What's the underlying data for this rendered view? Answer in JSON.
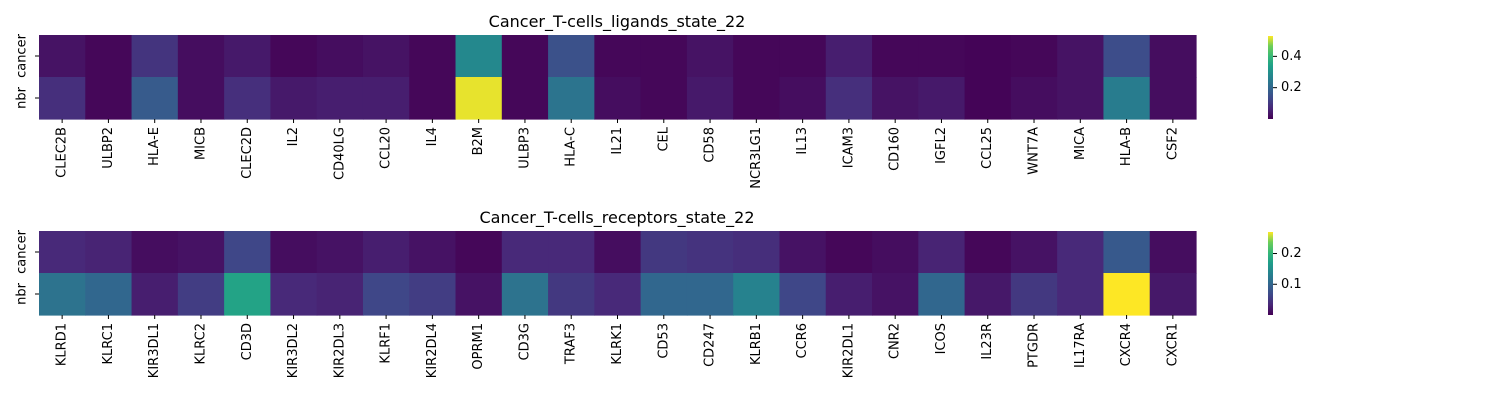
{
  "chart_data": [
    {
      "type": "heatmap",
      "title": "Cancer_T-cells_ligands_state_22",
      "xlabel": "",
      "ylabel": "",
      "rows": [
        "cancer",
        "nbr"
      ],
      "columns": [
        "CLEC2B",
        "ULBP2",
        "HLA-E",
        "MICB",
        "CLEC2D",
        "IL2",
        "CD40LG",
        "CCL20",
        "IL4",
        "B2M",
        "ULBP3",
        "HLA-C",
        "IL21",
        "CEL",
        "CD58",
        "NCR3LG1",
        "IL13",
        "ICAM3",
        "CD160",
        "IGFL2",
        "CCL25",
        "WNT7A",
        "MICA",
        "HLA-B",
        "CSF2"
      ],
      "values": [
        [
          0.03,
          0.01,
          0.09,
          0.02,
          0.04,
          0.01,
          0.02,
          0.03,
          0.01,
          0.28,
          0.01,
          0.15,
          0.01,
          0.01,
          0.03,
          0.01,
          0.01,
          0.05,
          0.01,
          0.01,
          0.005,
          0.01,
          0.03,
          0.14,
          0.02
        ],
        [
          0.08,
          0.01,
          0.17,
          0.02,
          0.08,
          0.04,
          0.05,
          0.05,
          0.01,
          0.52,
          0.01,
          0.23,
          0.02,
          0.01,
          0.04,
          0.01,
          0.02,
          0.08,
          0.03,
          0.04,
          0.005,
          0.02,
          0.03,
          0.25,
          0.02
        ]
      ],
      "colorbar": {
        "colormap": "viridis",
        "vmin": 0.0,
        "vmax": 0.53,
        "ticks": [
          0.2,
          0.4
        ]
      },
      "grid": false
    },
    {
      "type": "heatmap",
      "title": "Cancer_T-cells_receptors_state_22",
      "xlabel": "",
      "ylabel": "",
      "rows": [
        "cancer",
        "nbr"
      ],
      "columns": [
        "KLRD1",
        "KLRC1",
        "KIR3DL1",
        "KLRC2",
        "CD3D",
        "KIR3DL2",
        "KIR2DL3",
        "KLRF1",
        "KIR2DL4",
        "OPRM1",
        "CD3G",
        "TRAF3",
        "KLRK1",
        "CD53",
        "CD247",
        "KLRB1",
        "CCR6",
        "KIR2DL1",
        "CNR2",
        "ICOS",
        "IL23R",
        "PTGDR",
        "IL17RA",
        "CXCR4",
        "CXCR1"
      ],
      "values": [
        [
          0.035,
          0.03,
          0.01,
          0.015,
          0.065,
          0.01,
          0.015,
          0.025,
          0.015,
          0.005,
          0.035,
          0.035,
          0.01,
          0.05,
          0.045,
          0.04,
          0.015,
          0.005,
          0.01,
          0.03,
          0.005,
          0.015,
          0.035,
          0.085,
          0.01
        ],
        [
          0.115,
          0.1,
          0.025,
          0.055,
          0.175,
          0.035,
          0.03,
          0.065,
          0.055,
          0.015,
          0.115,
          0.05,
          0.035,
          0.1,
          0.1,
          0.135,
          0.065,
          0.025,
          0.015,
          0.1,
          0.02,
          0.05,
          0.035,
          0.27,
          0.02
        ]
      ],
      "colorbar": {
        "colormap": "viridis",
        "vmin": 0.0,
        "vmax": 0.27,
        "ticks": [
          0.1,
          0.2
        ]
      },
      "grid": false
    }
  ]
}
